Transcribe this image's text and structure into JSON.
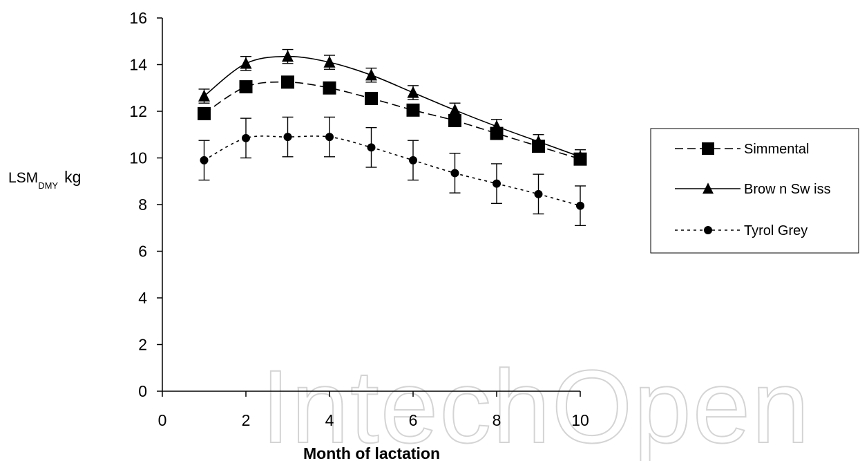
{
  "watermark": "IntechOpen",
  "chart_data": {
    "type": "line",
    "xlabel": "Month of lactation",
    "ylabel_main": "LSM",
    "ylabel_sub": "DMY",
    "ylabel_unit": "kg",
    "xlim": [
      0,
      10
    ],
    "ylim": [
      0,
      16
    ],
    "x_ticks": [
      0,
      2,
      4,
      6,
      8,
      10
    ],
    "y_ticks": [
      0,
      2,
      4,
      6,
      8,
      10,
      12,
      14,
      16
    ],
    "grid": false,
    "legend_position": "right",
    "x": [
      1,
      2,
      3,
      4,
      5,
      6,
      7,
      8,
      9,
      10
    ],
    "series": [
      {
        "name": "Simmental",
        "marker": "square",
        "line_style": "dashed",
        "color": "#000000",
        "values": [
          11.9,
          13.05,
          13.25,
          13.0,
          12.55,
          12.05,
          11.6,
          11.05,
          10.5,
          9.95
        ],
        "error": [
          0.2,
          0.2,
          0.2,
          0.2,
          0.2,
          0.2,
          0.2,
          0.2,
          0.2,
          0.2
        ]
      },
      {
        "name": "Brow n Sw iss",
        "marker": "triangle",
        "line_style": "solid",
        "color": "#000000",
        "values": [
          12.65,
          14.05,
          14.35,
          14.1,
          13.55,
          12.8,
          12.05,
          11.35,
          10.7,
          10.05
        ],
        "error": [
          0.3,
          0.3,
          0.3,
          0.3,
          0.3,
          0.3,
          0.3,
          0.3,
          0.3,
          0.3
        ]
      },
      {
        "name": "Tyrol Grey",
        "marker": "circle",
        "line_style": "dotted",
        "color": "#000000",
        "values": [
          9.9,
          10.85,
          10.9,
          10.9,
          10.45,
          9.9,
          9.35,
          8.9,
          8.45,
          7.95
        ],
        "error": [
          0.85,
          0.85,
          0.85,
          0.85,
          0.85,
          0.85,
          0.85,
          0.85,
          0.85,
          0.85
        ]
      }
    ]
  }
}
